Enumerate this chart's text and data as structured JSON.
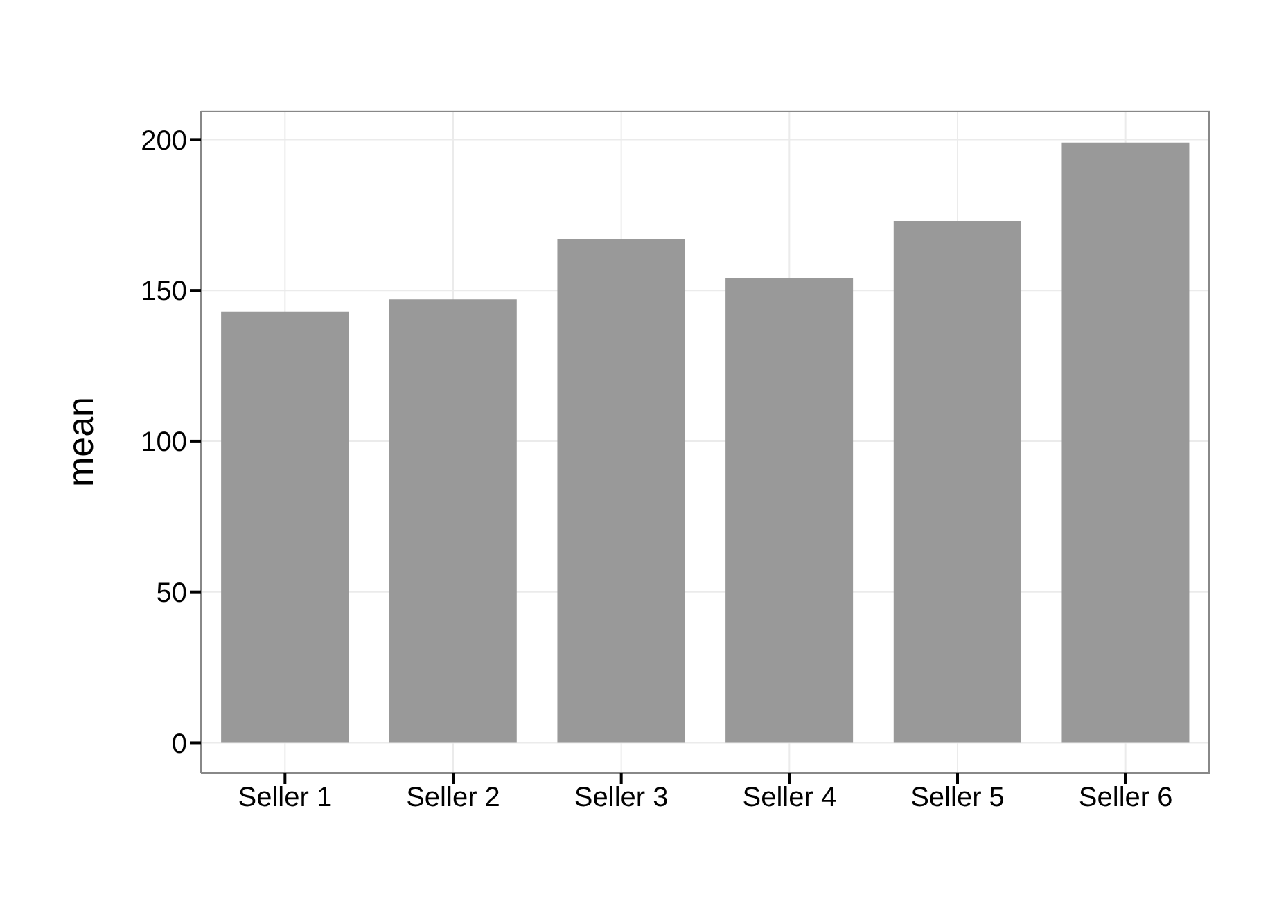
{
  "chart_data": {
    "type": "bar",
    "ylabel": "mean",
    "categories": [
      "Seller 1",
      "Seller 2",
      "Seller 3",
      "Seller 4",
      "Seller 5",
      "Seller 6"
    ],
    "values": [
      143,
      147,
      167,
      154,
      173,
      199
    ],
    "color": "#999999",
    "ylim": [
      -10,
      209.5
    ],
    "yticks": [
      0,
      50,
      100,
      150,
      200
    ],
    "grid": true
  }
}
